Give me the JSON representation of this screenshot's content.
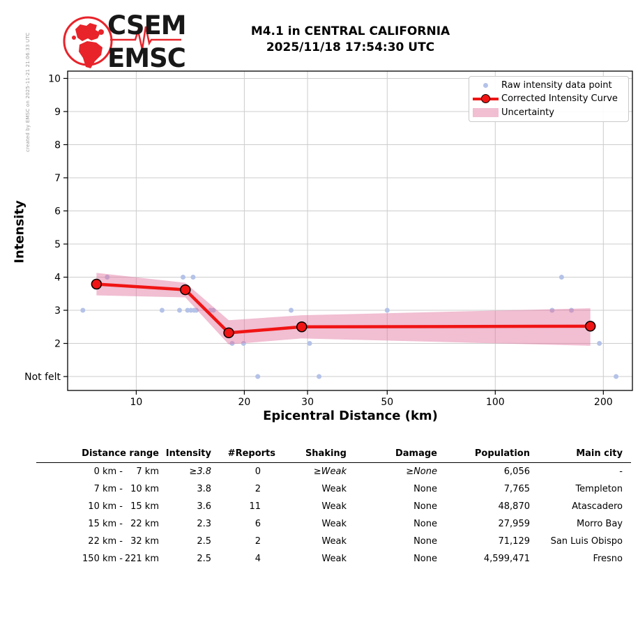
{
  "header": {
    "created_by": "created by EMSC on 2025-11-21 21:06:33 UTC",
    "logo_line1": "CSEM",
    "logo_line2": "EMSC",
    "title_line1": "M4.1 in CENTRAL CALIFORNIA",
    "title_line2": "2025/11/18 17:54:30 UTC"
  },
  "chart_data": {
    "type": "scatter",
    "title": "M4.1 in CENTRAL CALIFORNIA 2025/11/18 17:54:30 UTC",
    "xlabel": "Epicentral Distance (km)",
    "ylabel": "Intensity",
    "x_scale": "log",
    "xlim": [
      6.44,
      241
    ],
    "ylim": [
      0.58,
      10.22
    ],
    "grid": true,
    "legend_position": "upper right",
    "x_ticks": [
      {
        "value": 10,
        "label": "10"
      },
      {
        "value": 20,
        "label": "20"
      },
      {
        "value": 30,
        "label": "30"
      },
      {
        "value": 50,
        "label": "50"
      },
      {
        "value": 100,
        "label": "100"
      },
      {
        "value": 200,
        "label": "200"
      }
    ],
    "y_ticks": [
      {
        "value": 10,
        "label": "10"
      },
      {
        "value": 9,
        "label": "9"
      },
      {
        "value": 8,
        "label": "8"
      },
      {
        "value": 7,
        "label": "7"
      },
      {
        "value": 6,
        "label": "6"
      },
      {
        "value": 5,
        "label": "5"
      },
      {
        "value": 4,
        "label": "4"
      },
      {
        "value": 3,
        "label": "3"
      },
      {
        "value": 2,
        "label": "2"
      },
      {
        "value": 1,
        "label": "Not felt"
      }
    ],
    "legend": [
      {
        "label": "Raw intensity data point",
        "symbol": "dot"
      },
      {
        "label": "Corrected Intensity Curve",
        "symbol": "line-marker"
      },
      {
        "label": "Uncertainty",
        "symbol": "band"
      }
    ],
    "series": [
      {
        "name": "Raw intensity data point",
        "points_km_intensity": [
          [
            7.1,
            3
          ],
          [
            8.3,
            4
          ],
          [
            11.8,
            3
          ],
          [
            13.2,
            3
          ],
          [
            13.5,
            4
          ],
          [
            13.9,
            3
          ],
          [
            14.2,
            3
          ],
          [
            14.4,
            4
          ],
          [
            14.5,
            3
          ],
          [
            14.7,
            3
          ],
          [
            16.1,
            3
          ],
          [
            16.4,
            3
          ],
          [
            18.5,
            2
          ],
          [
            19.9,
            2
          ],
          [
            21.8,
            1
          ],
          [
            27.0,
            3
          ],
          [
            30.4,
            2
          ],
          [
            32.3,
            1
          ],
          [
            50.0,
            3
          ],
          [
            144.0,
            3
          ],
          [
            153.0,
            4
          ],
          [
            163.0,
            3
          ],
          [
            195.0,
            2
          ],
          [
            217.0,
            1
          ]
        ]
      },
      {
        "name": "Corrected Intensity Curve",
        "points_km_intensity": [
          [
            7.75,
            3.79
          ],
          [
            13.7,
            3.62
          ],
          [
            18.1,
            2.32
          ],
          [
            28.9,
            2.5
          ],
          [
            184.0,
            2.52
          ]
        ]
      },
      {
        "name": "Uncertainty",
        "band_upper_km_intensity": [
          [
            7.75,
            4.13
          ],
          [
            13.7,
            3.83
          ],
          [
            18.1,
            2.7
          ],
          [
            28.9,
            2.85
          ],
          [
            184.0,
            3.06
          ]
        ],
        "band_lower_km_intensity": [
          [
            7.75,
            3.45
          ],
          [
            13.7,
            3.39
          ],
          [
            18.1,
            1.97
          ],
          [
            28.9,
            2.15
          ],
          [
            184.0,
            1.93
          ]
        ]
      }
    ],
    "colors": {
      "curve": "#f01414",
      "marker_fill": "#f01414",
      "marker_edge": "#000000",
      "raw_point": "#b4c2e8",
      "band": "rgba(224,110,156,0.45)",
      "grid": "#cccccc",
      "axis": "#000000"
    }
  },
  "table": {
    "headers": [
      "Distance range",
      "Intensity",
      "#Reports",
      "Shaking",
      "Damage",
      "Population",
      "Main city"
    ],
    "rows": [
      {
        "from": "0 km",
        "to": "7 km",
        "intensity": "≥3.8",
        "reports": "0",
        "shaking": "≥Weak",
        "damage": "≥None",
        "population": "6,056",
        "city": "-",
        "lower_bound": true
      },
      {
        "from": "7 km",
        "to": "10 km",
        "intensity": "3.8",
        "reports": "2",
        "shaking": "Weak",
        "damage": "None",
        "population": "7,765",
        "city": "Templeton",
        "lower_bound": false
      },
      {
        "from": "10 km",
        "to": "15 km",
        "intensity": "3.6",
        "reports": "11",
        "shaking": "Weak",
        "damage": "None",
        "population": "48,870",
        "city": "Atascadero",
        "lower_bound": false
      },
      {
        "from": "15 km",
        "to": "22 km",
        "intensity": "2.3",
        "reports": "6",
        "shaking": "Weak",
        "damage": "None",
        "population": "27,959",
        "city": "Morro Bay",
        "lower_bound": false
      },
      {
        "from": "22 km",
        "to": "32 km",
        "intensity": "2.5",
        "reports": "2",
        "shaking": "Weak",
        "damage": "None",
        "population": "71,129",
        "city": "San Luis Obispo",
        "lower_bound": false
      },
      {
        "from": "150 km",
        "to": "221 km",
        "intensity": "2.5",
        "reports": "4",
        "shaking": "Weak",
        "damage": "None",
        "population": "4,599,471",
        "city": "Fresno",
        "lower_bound": false
      }
    ]
  },
  "logo_color": "#e8232a"
}
